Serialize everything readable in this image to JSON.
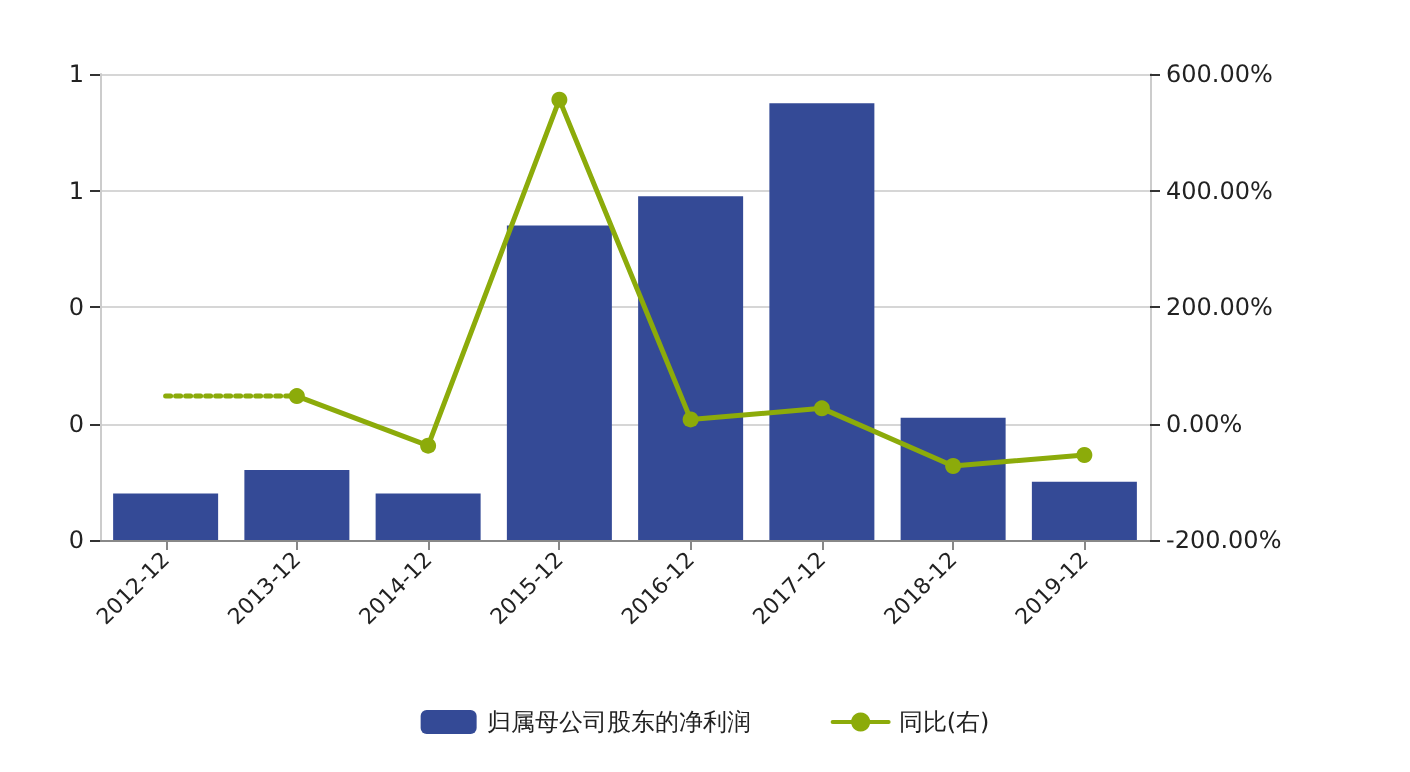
{
  "chart_data": {
    "type": "bar",
    "categories": [
      "2012-12",
      "2013-12",
      "2014-12",
      "2015-12",
      "2016-12",
      "2017-12",
      "2018-12",
      "2019-12"
    ],
    "series": [
      {
        "name": "归属母公司股东的净利润",
        "color": "#344a96",
        "values": [
          0.08,
          0.12,
          0.08,
          0.54,
          0.59,
          0.75,
          0.21,
          0.1
        ]
      },
      {
        "name": "同比(右)",
        "type": "line",
        "axis": "y2",
        "color": "#8cab0a",
        "marker": "circle",
        "line_style": "solid",
        "values": [
          null,
          47,
          -38,
          556,
          7,
          26,
          -73,
          -54
        ]
      },
      {
        "type": "line",
        "axis": "y2",
        "color": "#8cab0a",
        "marker": "none",
        "line_style": "dotted",
        "values": [
          47,
          47,
          null,
          null,
          null,
          null,
          null,
          null
        ]
      }
    ],
    "ylim": [
      0,
      0.8
    ],
    "yticks": [
      {
        "value": 0,
        "label": "0"
      },
      {
        "value": 0.2,
        "label": "0"
      },
      {
        "value": 0.4,
        "label": "0"
      },
      {
        "value": 0.6,
        "label": "1"
      },
      {
        "value": 0.8,
        "label": "1"
      }
    ],
    "y2lim": [
      -200,
      600
    ],
    "y2ticks": [
      {
        "value": -200,
        "label": "-200.00%"
      },
      {
        "value": 0,
        "label": "0.00%"
      },
      {
        "value": 200,
        "label": "200.00%"
      },
      {
        "value": 400,
        "label": "400.00%"
      },
      {
        "value": 600,
        "label": "600.00%"
      }
    ],
    "grid": "y",
    "legend": "bottom"
  }
}
